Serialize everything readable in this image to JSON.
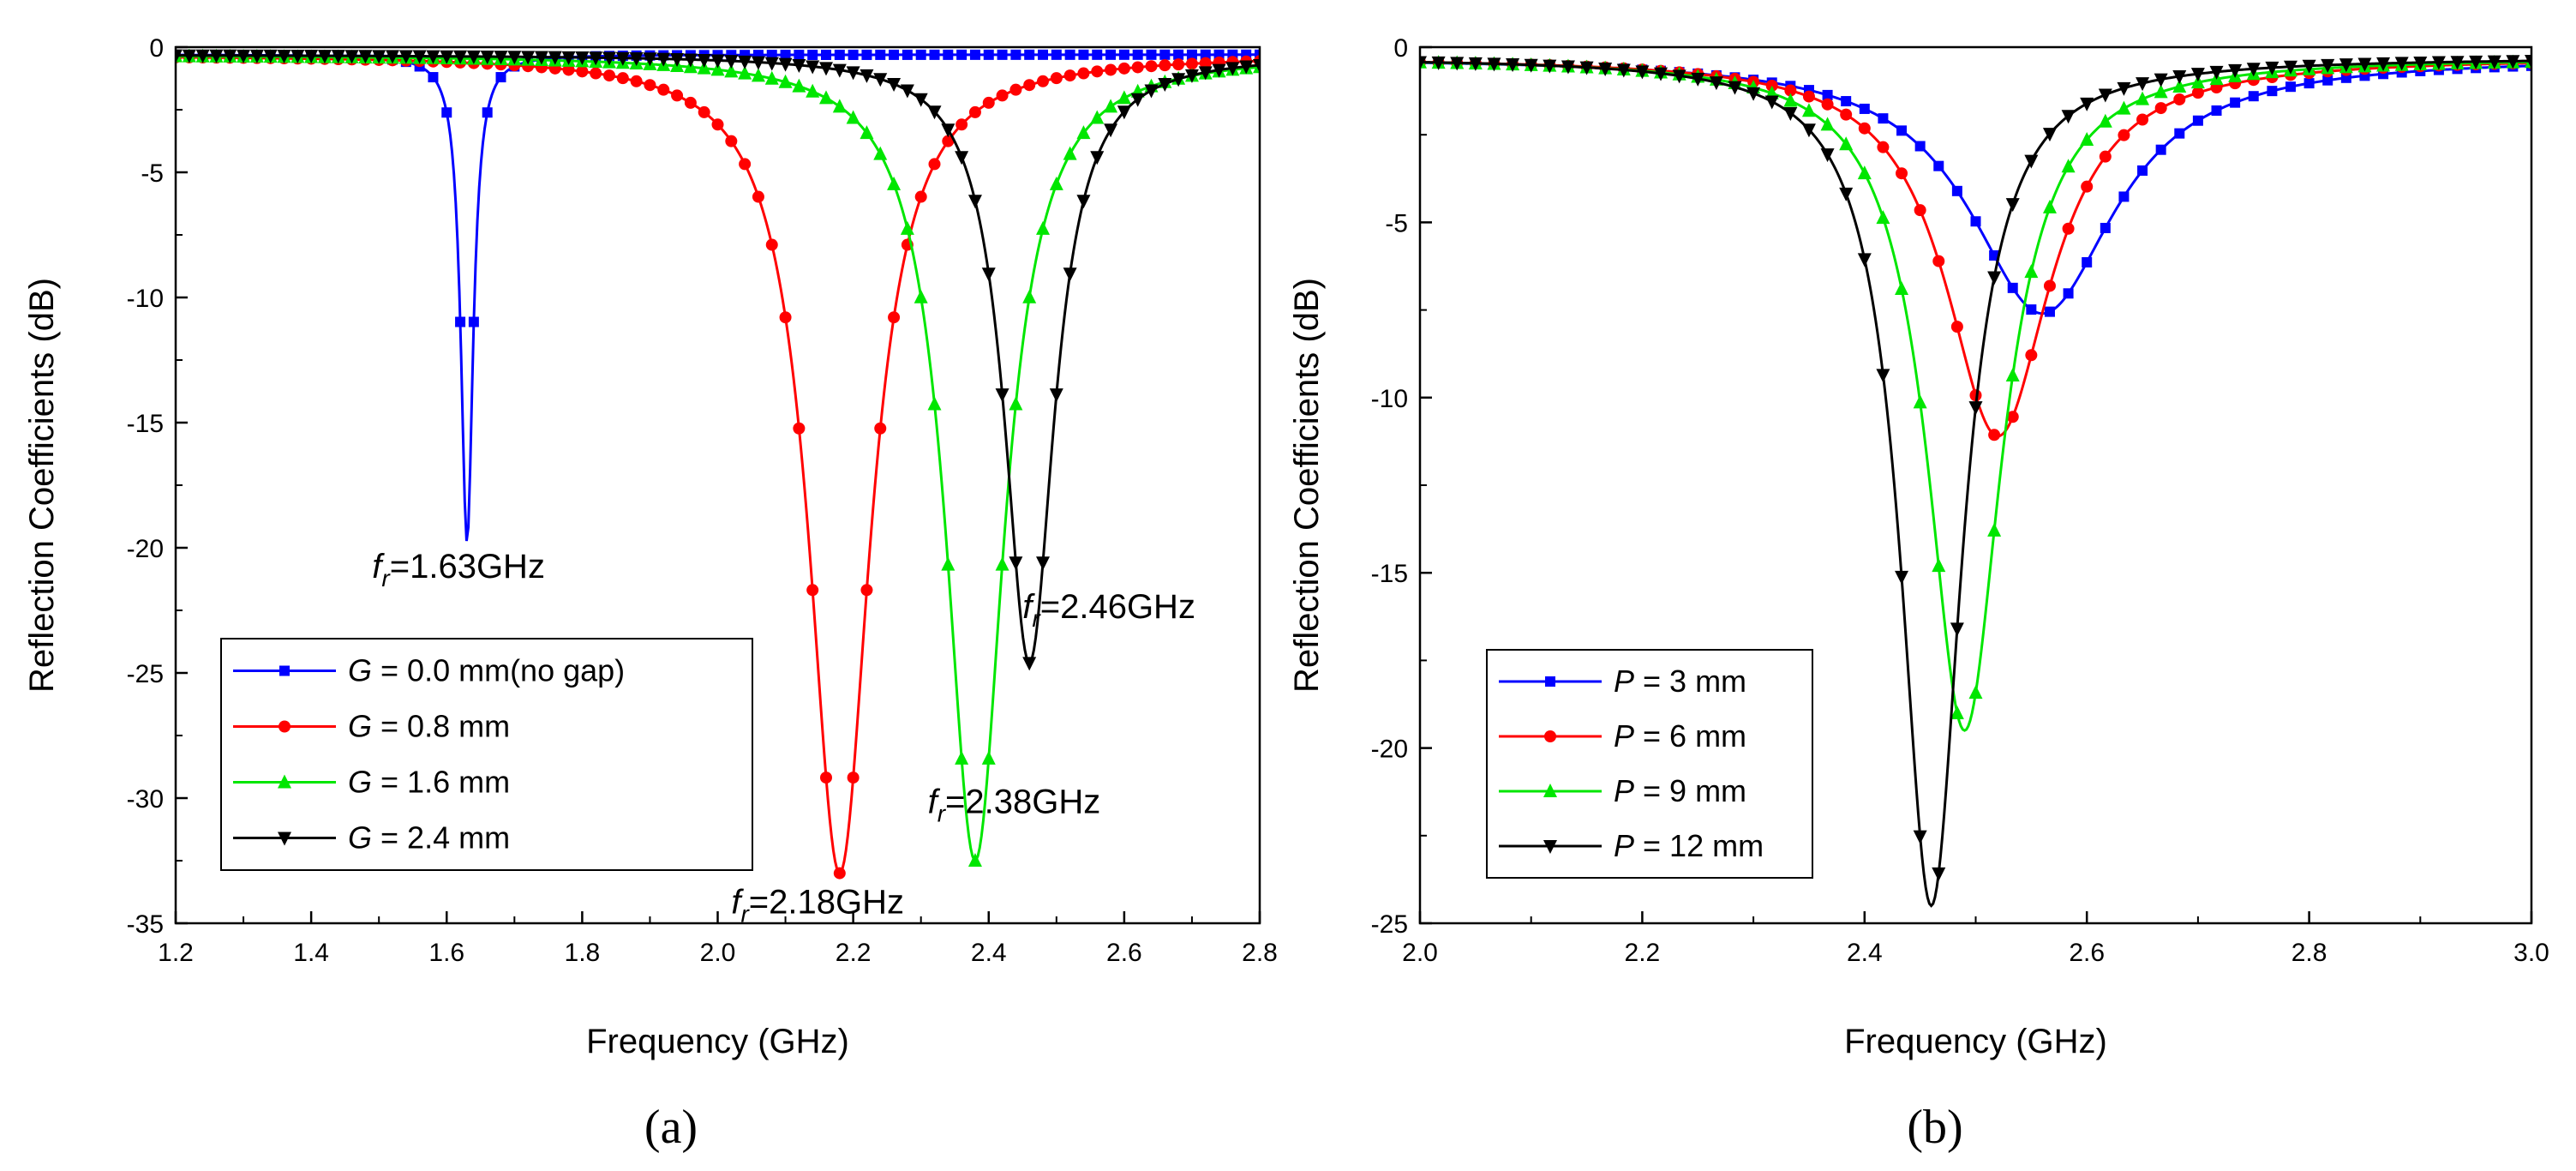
{
  "chart_data": [
    {
      "id": "a",
      "type": "line",
      "panel_label": "(a)",
      "xlabel": "Frequency (GHz)",
      "ylabel": "Reflection Coefficients (dB)",
      "xlim": [
        1.2,
        2.8
      ],
      "ylim": [
        -35,
        0
      ],
      "xticks": [
        1.2,
        1.4,
        1.6,
        1.8,
        2.0,
        2.2,
        2.4,
        2.6,
        2.8
      ],
      "xtick_labels": [
        "1.2",
        "1.4",
        "1.6",
        "1.8",
        "2.0",
        "2.2",
        "2.4",
        "2.6",
        "2.8"
      ],
      "yticks": [
        0,
        -5,
        -10,
        -15,
        -20,
        -25,
        -30,
        -35
      ],
      "ytick_labels": [
        "0",
        "-5",
        "-10",
        "-15",
        "-20",
        "-25",
        "-30",
        "-35"
      ],
      "grid": false,
      "legend_position": "bottom-left",
      "series": [
        {
          "var": "G",
          "rest": " = 0.0 mm(no gap)",
          "color": "#0000ff",
          "marker": "square",
          "fr": 1.63,
          "depth": -19.8,
          "gamma": 0.022,
          "baseline": -0.3,
          "n": 80
        },
        {
          "var": "G",
          "rest": " = 0.8 mm",
          "color": "#ff0000",
          "marker": "circle",
          "fr": 2.18,
          "depth": -33.0,
          "gamma": 0.11,
          "baseline": -0.3,
          "n": 80
        },
        {
          "var": "G",
          "rest": " = 1.6 mm",
          "color": "#00e600",
          "marker": "triangle-up",
          "fr": 2.38,
          "depth": -32.5,
          "gamma": 0.105,
          "baseline": -0.3,
          "n": 80
        },
        {
          "var": "G",
          "rest": " = 2.4 mm",
          "color": "#000000",
          "marker": "triangle-down",
          "fr": 2.46,
          "depth": -24.6,
          "gamma": 0.09,
          "baseline": -0.3,
          "n": 80
        }
      ],
      "annotations": [
        {
          "sym": "f",
          "sub": "r",
          "text": "=1.63GHz",
          "x": 1.49,
          "y": -21.2
        },
        {
          "sym": "f",
          "sub": "r",
          "text": "=2.18GHz",
          "x": 2.02,
          "y": -34.6
        },
        {
          "sym": "f",
          "sub": "r",
          "text": "=2.38GHz",
          "x": 2.31,
          "y": -30.6
        },
        {
          "sym": "f",
          "sub": "r",
          "text": "=2.46GHz",
          "x": 2.45,
          "y": -22.8
        }
      ]
    },
    {
      "id": "b",
      "type": "line",
      "panel_label": "(b)",
      "xlabel": "Frequency (GHz)",
      "ylabel": "Reflection Coefficients (dB)",
      "xlim": [
        2.0,
        3.0
      ],
      "ylim": [
        -25,
        0
      ],
      "xticks": [
        2.0,
        2.2,
        2.4,
        2.6,
        2.8,
        3.0
      ],
      "xtick_labels": [
        "2.0",
        "2.2",
        "2.4",
        "2.6",
        "2.8",
        "3.0"
      ],
      "yticks": [
        0,
        -5,
        -10,
        -15,
        -20,
        -25
      ],
      "ytick_labels": [
        "0",
        "-5",
        "-10",
        "-15",
        "-20",
        "-25"
      ],
      "grid": false,
      "legend_position": "bottom-left",
      "series": [
        {
          "var": "P",
          "rest": " = 3 mm",
          "color": "#0000ff",
          "marker": "square",
          "fr": 2.56,
          "depth": -7.6,
          "gamma": 0.16,
          "baseline": -0.3,
          "n": 60
        },
        {
          "var": "P",
          "rest": " = 6 mm",
          "color": "#ff0000",
          "marker": "circle",
          "fr": 2.52,
          "depth": -11.1,
          "gamma": 0.115,
          "baseline": -0.3,
          "n": 60
        },
        {
          "var": "P",
          "rest": " = 9 mm",
          "color": "#00e600",
          "marker": "triangle-up",
          "fr": 2.49,
          "depth": -19.5,
          "gamma": 0.082,
          "baseline": -0.3,
          "n": 60
        },
        {
          "var": "P",
          "rest": " = 12 mm",
          "color": "#000000",
          "marker": "triangle-down",
          "fr": 2.46,
          "depth": -24.5,
          "gamma": 0.067,
          "baseline": -0.3,
          "n": 60
        }
      ],
      "annotations": []
    }
  ]
}
